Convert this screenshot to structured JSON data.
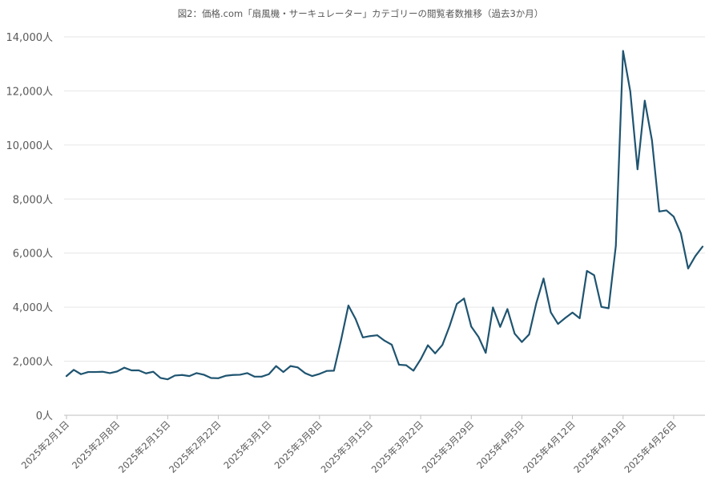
{
  "chart_data": {
    "type": "line",
    "title": "図2：価格.com「扇風機・サーキュレーター」カテゴリーの閲覧者数推移（過去3か月）",
    "xlabel": "",
    "ylabel": "",
    "ylim": [
      0,
      14000
    ],
    "y_ticks": [
      0,
      2000,
      4000,
      6000,
      8000,
      10000,
      12000,
      14000
    ],
    "y_tick_labels": [
      "0人",
      "2,000人",
      "4,000人",
      "6,000人",
      "8,000人",
      "10,000人",
      "12,000人",
      "14,000人"
    ],
    "x_start": "2025-02-01",
    "x_ticks": [
      0,
      7,
      14,
      21,
      28,
      35,
      42,
      49,
      56,
      63,
      70,
      77,
      84
    ],
    "x_tick_labels": [
      "2025年2月1日",
      "2025年2月8日",
      "2025年2月15日",
      "2025年2月22日",
      "2025年3月1日",
      "2025年3月8日",
      "2025年3月15日",
      "2025年3月22日",
      "2025年3月29日",
      "2025年4月5日",
      "2025年4月12日",
      "2025年4月19日",
      "2025年4月26日"
    ],
    "grid": true,
    "line_color": "#1f5470",
    "series": [
      {
        "values": [
          1450,
          1680,
          1520,
          1600,
          1600,
          1610,
          1560,
          1620,
          1760,
          1660,
          1660,
          1550,
          1610,
          1380,
          1330,
          1470,
          1490,
          1450,
          1560,
          1500,
          1380,
          1370,
          1460,
          1490,
          1500,
          1560,
          1430,
          1430,
          1520,
          1820,
          1600,
          1820,
          1770,
          1560,
          1450,
          1530,
          1640,
          1650,
          2800,
          4060,
          3560,
          2880,
          2930,
          2960,
          2760,
          2610,
          1870,
          1850,
          1650,
          2070,
          2590,
          2290,
          2600,
          3300,
          4120,
          4320,
          3280,
          2900,
          2310,
          3990,
          3270,
          3930,
          3020,
          2710,
          2990,
          4150,
          5060,
          3810,
          3380,
          3600,
          3800,
          3590,
          5340,
          5180,
          4010,
          3960,
          6270,
          13480,
          11980,
          9100,
          11640,
          10170,
          7540,
          7580,
          7350,
          6730,
          5430,
          5890,
          6240
        ]
      }
    ]
  }
}
